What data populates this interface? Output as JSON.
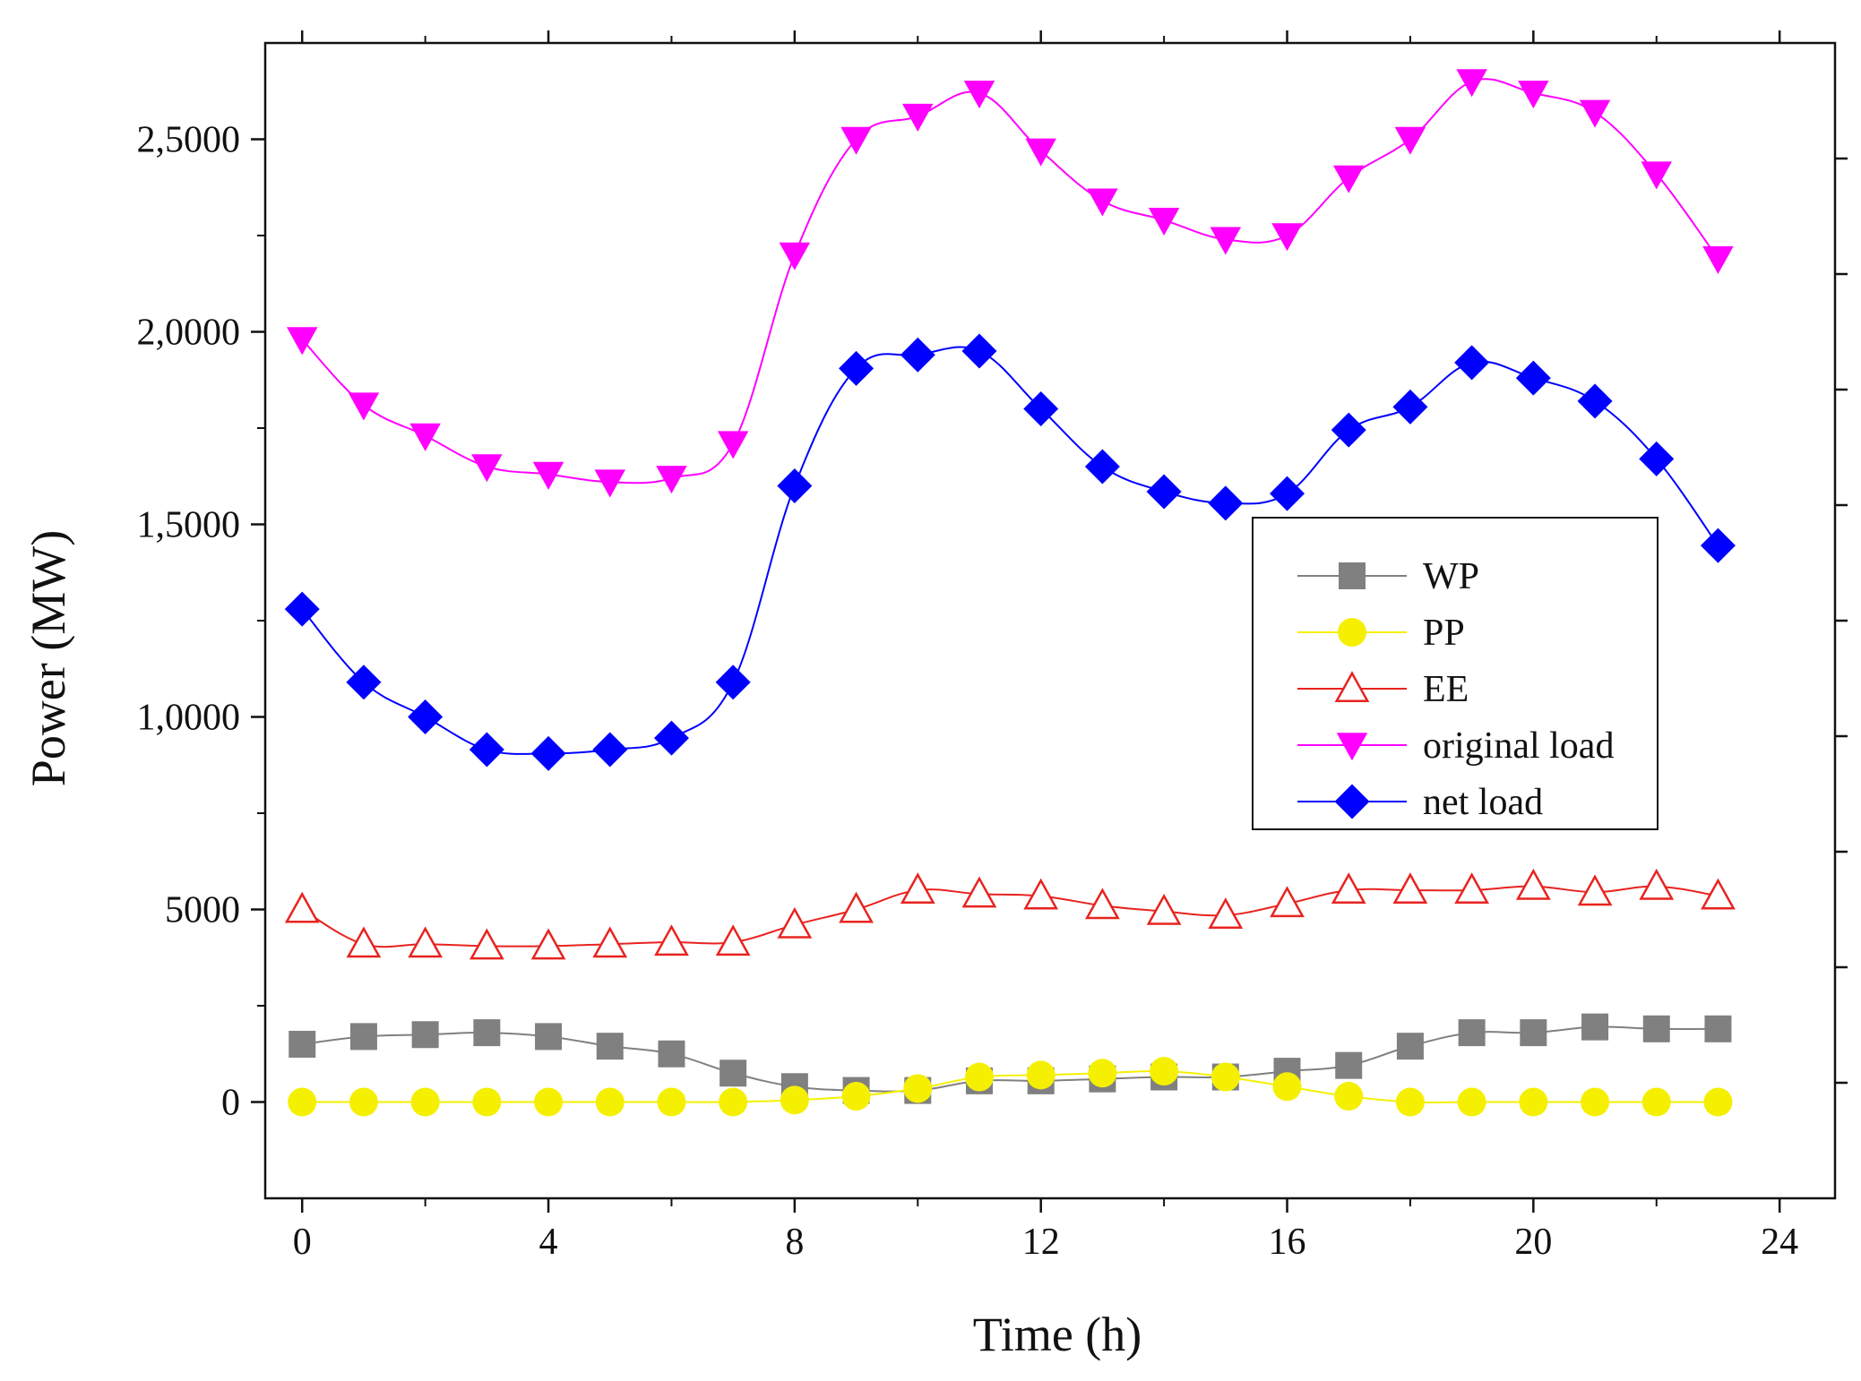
{
  "chart_data": {
    "type": "line",
    "title": "",
    "xlabel": "Time (h)",
    "ylabel": "Power (MW)",
    "xlim": [
      -0.6,
      24.9
    ],
    "ylim": [
      -2500,
      27500
    ],
    "xticks": [
      0,
      4,
      8,
      12,
      16,
      20,
      24
    ],
    "xtick_labels": [
      "0",
      "4",
      "8",
      "12",
      "16",
      "20",
      "24"
    ],
    "yticks": [
      0,
      5000,
      10000,
      15000,
      20000,
      25000
    ],
    "ytick_labels": [
      "0",
      "5000",
      "1,0000",
      "1,5000",
      "2,0000",
      "2,5000"
    ],
    "grid": false,
    "legend_position": "center-right",
    "x": [
      0,
      1,
      2,
      3,
      4,
      5,
      6,
      7,
      8,
      9,
      10,
      11,
      12,
      13,
      14,
      15,
      16,
      17,
      18,
      19,
      20,
      21,
      22,
      23
    ],
    "series": [
      {
        "name": "WP",
        "color": "#808080",
        "marker": "square",
        "values": [
          1500,
          1700,
          1750,
          1800,
          1700,
          1450,
          1250,
          750,
          400,
          300,
          300,
          550,
          550,
          600,
          650,
          650,
          800,
          950,
          1450,
          1800,
          1800,
          1950,
          1900,
          1900
        ]
      },
      {
        "name": "PP",
        "color": "#f5f000",
        "marker": "circle",
        "values": [
          0,
          0,
          0,
          0,
          0,
          0,
          0,
          0,
          50,
          150,
          350,
          650,
          700,
          750,
          800,
          650,
          400,
          150,
          0,
          0,
          0,
          0,
          0,
          0
        ]
      },
      {
        "name": "EE",
        "color": "#e8231f",
        "marker": "triangle-up-open",
        "values": [
          5000,
          4100,
          4100,
          4050,
          4050,
          4100,
          4150,
          4150,
          4600,
          5000,
          5500,
          5400,
          5350,
          5100,
          4950,
          4850,
          5150,
          5500,
          5500,
          5500,
          5600,
          5450,
          5600,
          5350
        ]
      },
      {
        "name": "original load",
        "color": "#ff00ff",
        "marker": "triangle-down",
        "values": [
          19800,
          18100,
          17300,
          16500,
          16300,
          16100,
          16200,
          17100,
          22000,
          25000,
          25600,
          26200,
          24700,
          23400,
          22900,
          22400,
          22500,
          24000,
          25000,
          26500,
          26200,
          25700,
          24100,
          21900
        ]
      },
      {
        "name": "net load",
        "color": "#0000ff",
        "marker": "diamond",
        "values": [
          12800,
          10900,
          10000,
          9150,
          9050,
          9150,
          9450,
          10900,
          16000,
          19050,
          19400,
          19500,
          18000,
          16500,
          15850,
          15550,
          15800,
          17450,
          18050,
          19200,
          18800,
          18200,
          16700,
          14450
        ]
      }
    ]
  }
}
